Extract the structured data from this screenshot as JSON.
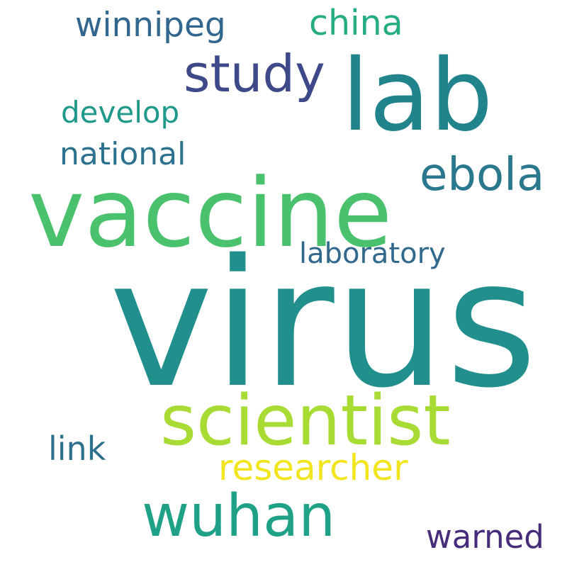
{
  "word_cloud": {
    "background": "#ffffff",
    "words": [
      {
        "text": "virus",
        "color": "#21908d"
      },
      {
        "text": "vaccine",
        "color": "#4ac16d"
      },
      {
        "text": "lab",
        "color": "#21838c"
      },
      {
        "text": "scientist",
        "color": "#a8db34"
      },
      {
        "text": "wuhan",
        "color": "#1fa187"
      },
      {
        "text": "study",
        "color": "#3e4989"
      },
      {
        "text": "ebola",
        "color": "#2a788e"
      },
      {
        "text": "researcher",
        "color": "#f2e51d"
      },
      {
        "text": "laboratory",
        "color": "#31688e"
      },
      {
        "text": "winnipeg",
        "color": "#31668e"
      },
      {
        "text": "china",
        "color": "#25ac82"
      },
      {
        "text": "national",
        "color": "#2c728e"
      },
      {
        "text": "develop",
        "color": "#1f998a"
      },
      {
        "text": "link",
        "color": "#2d708e"
      },
      {
        "text": "warned",
        "color": "#472c7a"
      }
    ]
  }
}
